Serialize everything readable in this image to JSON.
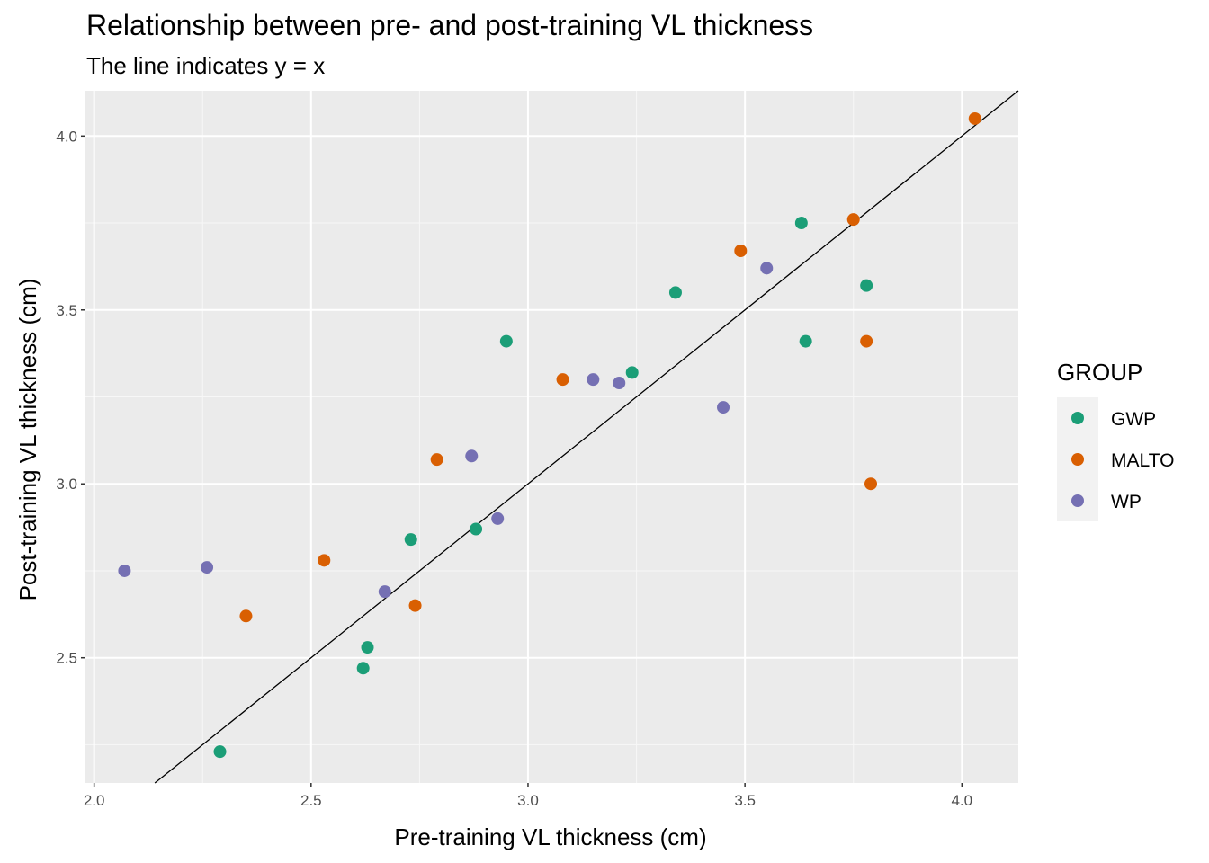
{
  "chart_data": {
    "type": "scatter",
    "title": "Relationship between pre- and post-training VL thickness",
    "subtitle": "The line indicates y = x",
    "xlabel": "Pre-training VL thickness (cm)",
    "ylabel": "Post-training VL thickness (cm)",
    "xlim": [
      1.98,
      4.13
    ],
    "ylim": [
      2.14,
      4.13
    ],
    "x_ticks": [
      2.0,
      2.5,
      3.0,
      3.5,
      4.0
    ],
    "x_tick_labels": [
      "2.0",
      "2.5",
      "3.0",
      "3.5",
      "4.0"
    ],
    "y_ticks": [
      2.5,
      3.0,
      3.5,
      4.0
    ],
    "y_tick_labels": [
      "2.5",
      "3.0",
      "3.5",
      "4.0"
    ],
    "grid": true,
    "reference_line": "y = x",
    "legend": {
      "title": "GROUP",
      "placement": "right"
    },
    "series": [
      {
        "name": "GWP",
        "color": "#1B9E77",
        "points": [
          {
            "x": 2.29,
            "y": 2.23
          },
          {
            "x": 2.62,
            "y": 2.47
          },
          {
            "x": 2.63,
            "y": 2.53
          },
          {
            "x": 2.73,
            "y": 2.84
          },
          {
            "x": 2.88,
            "y": 2.87
          },
          {
            "x": 2.95,
            "y": 3.41
          },
          {
            "x": 3.24,
            "y": 3.32
          },
          {
            "x": 3.34,
            "y": 3.55
          },
          {
            "x": 3.63,
            "y": 3.75
          },
          {
            "x": 3.64,
            "y": 3.41
          },
          {
            "x": 3.78,
            "y": 3.57
          }
        ]
      },
      {
        "name": "MALTO",
        "color": "#D95F02",
        "points": [
          {
            "x": 2.35,
            "y": 2.62
          },
          {
            "x": 2.53,
            "y": 2.78
          },
          {
            "x": 2.74,
            "y": 2.65
          },
          {
            "x": 2.79,
            "y": 3.07
          },
          {
            "x": 3.08,
            "y": 3.3
          },
          {
            "x": 3.49,
            "y": 3.67
          },
          {
            "x": 3.75,
            "y": 3.76
          },
          {
            "x": 3.78,
            "y": 3.41
          },
          {
            "x": 3.79,
            "y": 3.0
          },
          {
            "x": 4.03,
            "y": 4.05
          }
        ]
      },
      {
        "name": "WP",
        "color": "#7570B3",
        "points": [
          {
            "x": 2.07,
            "y": 2.75
          },
          {
            "x": 2.26,
            "y": 2.76
          },
          {
            "x": 2.67,
            "y": 2.69
          },
          {
            "x": 2.87,
            "y": 3.08
          },
          {
            "x": 2.93,
            "y": 2.9
          },
          {
            "x": 3.15,
            "y": 3.3
          },
          {
            "x": 3.21,
            "y": 3.29
          },
          {
            "x": 3.45,
            "y": 3.22
          },
          {
            "x": 3.55,
            "y": 3.62
          }
        ]
      }
    ]
  }
}
